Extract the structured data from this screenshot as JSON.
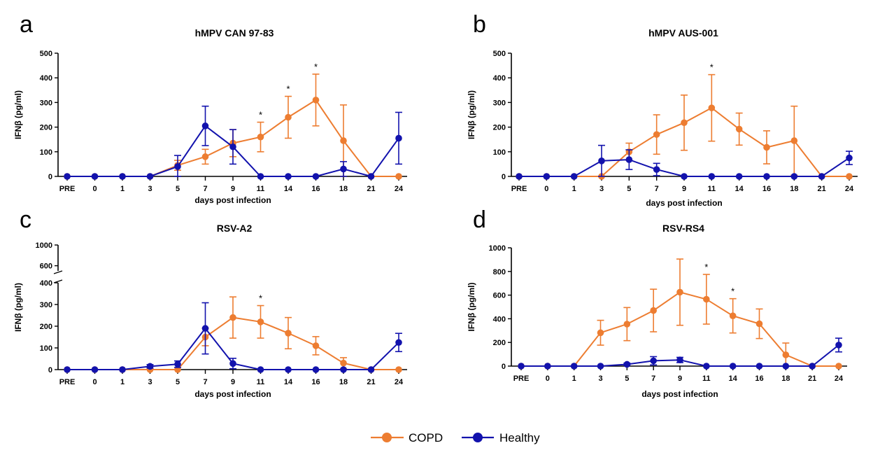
{
  "colors": {
    "copd": "#ED7D31",
    "healthy": "#1212AD",
    "axis": "#000000"
  },
  "legend": [
    {
      "key": "copd",
      "label": "COPD"
    },
    {
      "key": "healthy",
      "label": "Healthy"
    }
  ],
  "chart_data": [
    {
      "type": "line",
      "panel": "a",
      "title": "hMPV CAN 97-83",
      "xlabel": "days post infection",
      "ylabel": "IFNβ (pg/ml)",
      "categories": [
        "PRE",
        "0",
        "1",
        "3",
        "5",
        "7",
        "9",
        "11",
        "14",
        "16",
        "18",
        "21",
        "24"
      ],
      "ylim": [
        0,
        500
      ],
      "yticks": [
        0,
        100,
        200,
        300,
        400,
        500
      ],
      "series": [
        {
          "name": "COPD",
          "key": "copd",
          "values": [
            0,
            0,
            0,
            0,
            45,
            80,
            135,
            160,
            240,
            310,
            145,
            0,
            0
          ],
          "errors": [
            0,
            0,
            0,
            0,
            20,
            30,
            55,
            60,
            85,
            105,
            145,
            0,
            0
          ]
        },
        {
          "name": "Healthy",
          "key": "healthy",
          "values": [
            0,
            0,
            0,
            0,
            40,
            205,
            120,
            0,
            0,
            0,
            30,
            0,
            155
          ],
          "errors": [
            0,
            0,
            0,
            0,
            45,
            80,
            70,
            0,
            0,
            0,
            30,
            0,
            105
          ]
        }
      ],
      "significance": [
        {
          "category": "11",
          "label": "*"
        },
        {
          "category": "14",
          "label": "*"
        },
        {
          "category": "16",
          "label": "*"
        }
      ]
    },
    {
      "type": "line",
      "panel": "b",
      "title": "hMPV AUS-001",
      "xlabel": "days post infection",
      "ylabel": "IFNβ (pg/ml)",
      "categories": [
        "PRE",
        "0",
        "1",
        "3",
        "5",
        "7",
        "9",
        "11",
        "14",
        "16",
        "18",
        "21",
        "24"
      ],
      "ylim": [
        0,
        500
      ],
      "yticks": [
        0,
        100,
        200,
        300,
        400,
        500
      ],
      "series": [
        {
          "name": "COPD",
          "key": "copd",
          "values": [
            0,
            0,
            0,
            0,
            100,
            170,
            218,
            278,
            192,
            118,
            145,
            0,
            0
          ],
          "errors": [
            0,
            0,
            0,
            0,
            35,
            80,
            112,
            135,
            65,
            67,
            140,
            0,
            0
          ]
        },
        {
          "name": "Healthy",
          "key": "healthy",
          "values": [
            0,
            0,
            0,
            63,
            68,
            28,
            0,
            0,
            0,
            0,
            0,
            0,
            75
          ],
          "errors": [
            0,
            0,
            0,
            63,
            40,
            25,
            0,
            0,
            0,
            0,
            0,
            0,
            27
          ]
        }
      ],
      "significance": [
        {
          "category": "11",
          "label": "*"
        }
      ]
    },
    {
      "type": "line",
      "panel": "c",
      "title": "RSV-A2",
      "xlabel": "days post infection",
      "ylabel": "IFNβ (pg/ml)",
      "categories": [
        "PRE",
        "0",
        "1",
        "3",
        "5",
        "7",
        "9",
        "11",
        "14",
        "16",
        "18",
        "21",
        "24"
      ],
      "ylim": [
        0,
        1000
      ],
      "yticks": [
        0,
        100,
        200,
        300,
        400,
        600,
        1000
      ],
      "axis_break": [
        400,
        500
      ],
      "series": [
        {
          "name": "COPD",
          "key": "copd",
          "values": [
            0,
            0,
            0,
            0,
            0,
            150,
            240,
            220,
            168,
            110,
            30,
            0,
            0
          ],
          "errors": [
            0,
            0,
            0,
            0,
            0,
            40,
            95,
            75,
            72,
            42,
            25,
            0,
            0
          ]
        },
        {
          "name": "Healthy",
          "key": "healthy",
          "values": [
            0,
            0,
            0,
            15,
            25,
            190,
            28,
            0,
            0,
            0,
            0,
            0,
            125
          ],
          "errors": [
            0,
            0,
            0,
            8,
            15,
            118,
            24,
            0,
            0,
            0,
            0,
            0,
            42
          ]
        }
      ],
      "significance": [
        {
          "category": "11",
          "label": "*"
        }
      ]
    },
    {
      "type": "line",
      "panel": "d",
      "title": "RSV-RS4",
      "xlabel": "days post infection",
      "ylabel": "IFNβ (pg/ml)",
      "categories": [
        "PRE",
        "0",
        "1",
        "3",
        "5",
        "7",
        "9",
        "11",
        "14",
        "16",
        "18",
        "21",
        "24"
      ],
      "ylim": [
        0,
        1000
      ],
      "yticks": [
        0,
        200,
        400,
        600,
        800,
        1000
      ],
      "series": [
        {
          "name": "COPD",
          "key": "copd",
          "values": [
            0,
            0,
            0,
            282,
            355,
            470,
            625,
            565,
            425,
            358,
            95,
            0,
            0
          ],
          "errors": [
            0,
            0,
            0,
            105,
            140,
            180,
            280,
            210,
            145,
            125,
            100,
            0,
            0
          ]
        },
        {
          "name": "Healthy",
          "key": "healthy",
          "values": [
            0,
            0,
            0,
            0,
            15,
            45,
            52,
            0,
            0,
            0,
            0,
            0,
            178
          ],
          "errors": [
            0,
            0,
            0,
            0,
            10,
            35,
            22,
            0,
            0,
            0,
            0,
            0,
            58
          ]
        }
      ],
      "significance": [
        {
          "category": "11",
          "label": "*"
        },
        {
          "category": "14",
          "label": "*"
        }
      ]
    }
  ]
}
